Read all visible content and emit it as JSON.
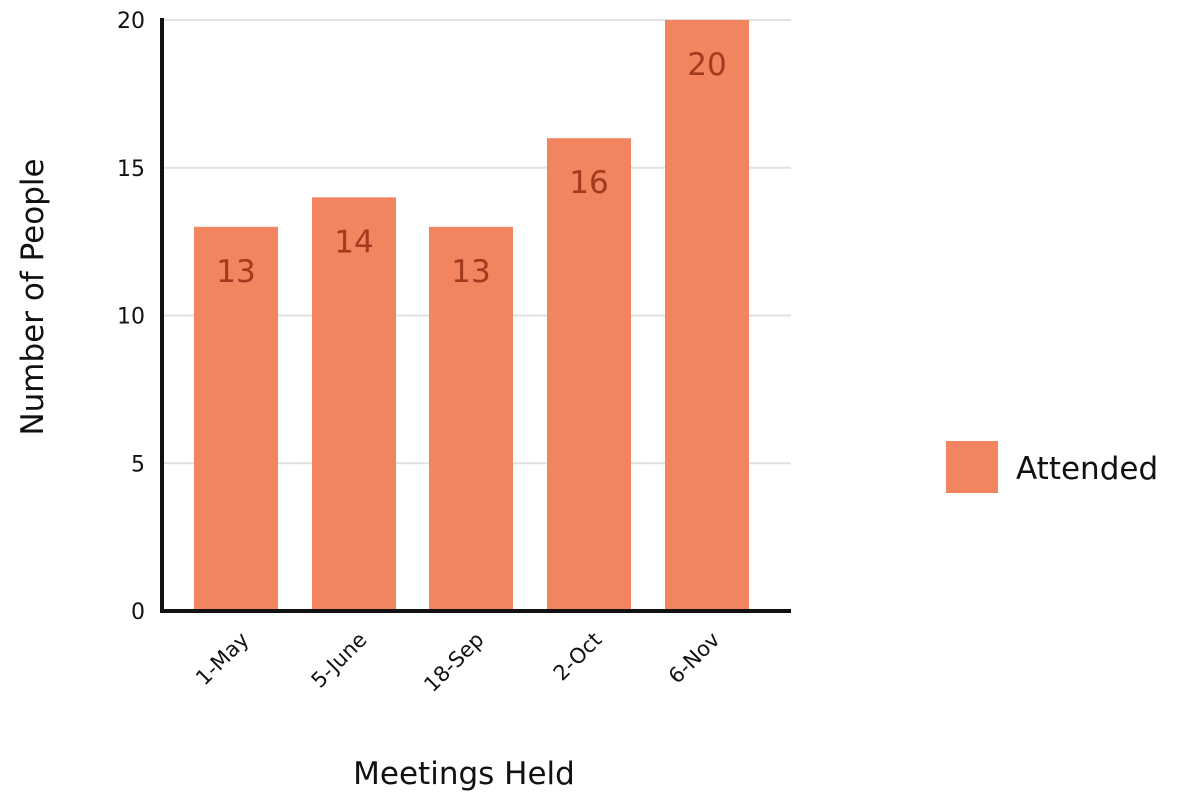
{
  "chart_data": {
    "type": "bar",
    "categories": [
      "1-May",
      "5-June",
      "18-Sep",
      "2-Oct",
      "6-Nov"
    ],
    "series": [
      {
        "name": "Attended",
        "values": [
          13,
          14,
          13,
          16,
          20
        ]
      }
    ],
    "data_labels": [
      "13",
      "14",
      "13",
      "16",
      "20"
    ],
    "xlabel": "Meetings Held",
    "ylabel": "Number of People",
    "ylim": [
      0,
      20
    ],
    "yticks": [
      0,
      5,
      10,
      15,
      20
    ],
    "ytick_labels": [
      "0",
      "5",
      "10",
      "15",
      "20"
    ],
    "grid": true,
    "legend_position": "right",
    "colors": {
      "bar": "#f2845f",
      "data_label": "#a23a1f",
      "grid": "#e2e2e2",
      "axis": "#111111"
    }
  }
}
